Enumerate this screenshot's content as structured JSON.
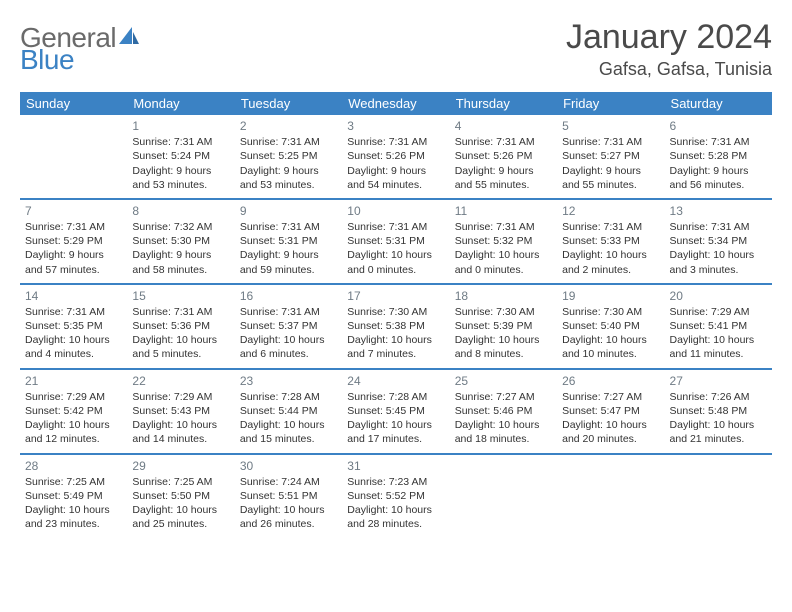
{
  "logo": {
    "word1": "General",
    "word2": "Blue"
  },
  "title": "January 2024",
  "location": "Gafsa, Gafsa, Tunisia",
  "colors": {
    "header_bg": "#3b82c4",
    "header_text": "#ffffff",
    "body_bg": "#ffffff",
    "text": "#333333",
    "daynum": "#6f7b85",
    "logo_gray": "#6a6a6a",
    "logo_blue": "#3b82c4",
    "rule": "#3b82c4"
  },
  "typography": {
    "title_fontsize": 34,
    "location_fontsize": 18,
    "dayheader_fontsize": 13,
    "cell_fontsize": 10.5,
    "daynum_fontsize": 12
  },
  "day_headers": [
    "Sunday",
    "Monday",
    "Tuesday",
    "Wednesday",
    "Thursday",
    "Friday",
    "Saturday"
  ],
  "weeks": [
    [
      null,
      {
        "n": "1",
        "sunrise": "7:31 AM",
        "sunset": "5:24 PM",
        "daylight": "9 hours and 53 minutes."
      },
      {
        "n": "2",
        "sunrise": "7:31 AM",
        "sunset": "5:25 PM",
        "daylight": "9 hours and 53 minutes."
      },
      {
        "n": "3",
        "sunrise": "7:31 AM",
        "sunset": "5:26 PM",
        "daylight": "9 hours and 54 minutes."
      },
      {
        "n": "4",
        "sunrise": "7:31 AM",
        "sunset": "5:26 PM",
        "daylight": "9 hours and 55 minutes."
      },
      {
        "n": "5",
        "sunrise": "7:31 AM",
        "sunset": "5:27 PM",
        "daylight": "9 hours and 55 minutes."
      },
      {
        "n": "6",
        "sunrise": "7:31 AM",
        "sunset": "5:28 PM",
        "daylight": "9 hours and 56 minutes."
      }
    ],
    [
      {
        "n": "7",
        "sunrise": "7:31 AM",
        "sunset": "5:29 PM",
        "daylight": "9 hours and 57 minutes."
      },
      {
        "n": "8",
        "sunrise": "7:32 AM",
        "sunset": "5:30 PM",
        "daylight": "9 hours and 58 minutes."
      },
      {
        "n": "9",
        "sunrise": "7:31 AM",
        "sunset": "5:31 PM",
        "daylight": "9 hours and 59 minutes."
      },
      {
        "n": "10",
        "sunrise": "7:31 AM",
        "sunset": "5:31 PM",
        "daylight": "10 hours and 0 minutes."
      },
      {
        "n": "11",
        "sunrise": "7:31 AM",
        "sunset": "5:32 PM",
        "daylight": "10 hours and 0 minutes."
      },
      {
        "n": "12",
        "sunrise": "7:31 AM",
        "sunset": "5:33 PM",
        "daylight": "10 hours and 2 minutes."
      },
      {
        "n": "13",
        "sunrise": "7:31 AM",
        "sunset": "5:34 PM",
        "daylight": "10 hours and 3 minutes."
      }
    ],
    [
      {
        "n": "14",
        "sunrise": "7:31 AM",
        "sunset": "5:35 PM",
        "daylight": "10 hours and 4 minutes."
      },
      {
        "n": "15",
        "sunrise": "7:31 AM",
        "sunset": "5:36 PM",
        "daylight": "10 hours and 5 minutes."
      },
      {
        "n": "16",
        "sunrise": "7:31 AM",
        "sunset": "5:37 PM",
        "daylight": "10 hours and 6 minutes."
      },
      {
        "n": "17",
        "sunrise": "7:30 AM",
        "sunset": "5:38 PM",
        "daylight": "10 hours and 7 minutes."
      },
      {
        "n": "18",
        "sunrise": "7:30 AM",
        "sunset": "5:39 PM",
        "daylight": "10 hours and 8 minutes."
      },
      {
        "n": "19",
        "sunrise": "7:30 AM",
        "sunset": "5:40 PM",
        "daylight": "10 hours and 10 minutes."
      },
      {
        "n": "20",
        "sunrise": "7:29 AM",
        "sunset": "5:41 PM",
        "daylight": "10 hours and 11 minutes."
      }
    ],
    [
      {
        "n": "21",
        "sunrise": "7:29 AM",
        "sunset": "5:42 PM",
        "daylight": "10 hours and 12 minutes."
      },
      {
        "n": "22",
        "sunrise": "7:29 AM",
        "sunset": "5:43 PM",
        "daylight": "10 hours and 14 minutes."
      },
      {
        "n": "23",
        "sunrise": "7:28 AM",
        "sunset": "5:44 PM",
        "daylight": "10 hours and 15 minutes."
      },
      {
        "n": "24",
        "sunrise": "7:28 AM",
        "sunset": "5:45 PM",
        "daylight": "10 hours and 17 minutes."
      },
      {
        "n": "25",
        "sunrise": "7:27 AM",
        "sunset": "5:46 PM",
        "daylight": "10 hours and 18 minutes."
      },
      {
        "n": "26",
        "sunrise": "7:27 AM",
        "sunset": "5:47 PM",
        "daylight": "10 hours and 20 minutes."
      },
      {
        "n": "27",
        "sunrise": "7:26 AM",
        "sunset": "5:48 PM",
        "daylight": "10 hours and 21 minutes."
      }
    ],
    [
      {
        "n": "28",
        "sunrise": "7:25 AM",
        "sunset": "5:49 PM",
        "daylight": "10 hours and 23 minutes."
      },
      {
        "n": "29",
        "sunrise": "7:25 AM",
        "sunset": "5:50 PM",
        "daylight": "10 hours and 25 minutes."
      },
      {
        "n": "30",
        "sunrise": "7:24 AM",
        "sunset": "5:51 PM",
        "daylight": "10 hours and 26 minutes."
      },
      {
        "n": "31",
        "sunrise": "7:23 AM",
        "sunset": "5:52 PM",
        "daylight": "10 hours and 28 minutes."
      },
      null,
      null,
      null
    ]
  ],
  "labels": {
    "sunrise": "Sunrise:",
    "sunset": "Sunset:",
    "daylight": "Daylight:"
  }
}
